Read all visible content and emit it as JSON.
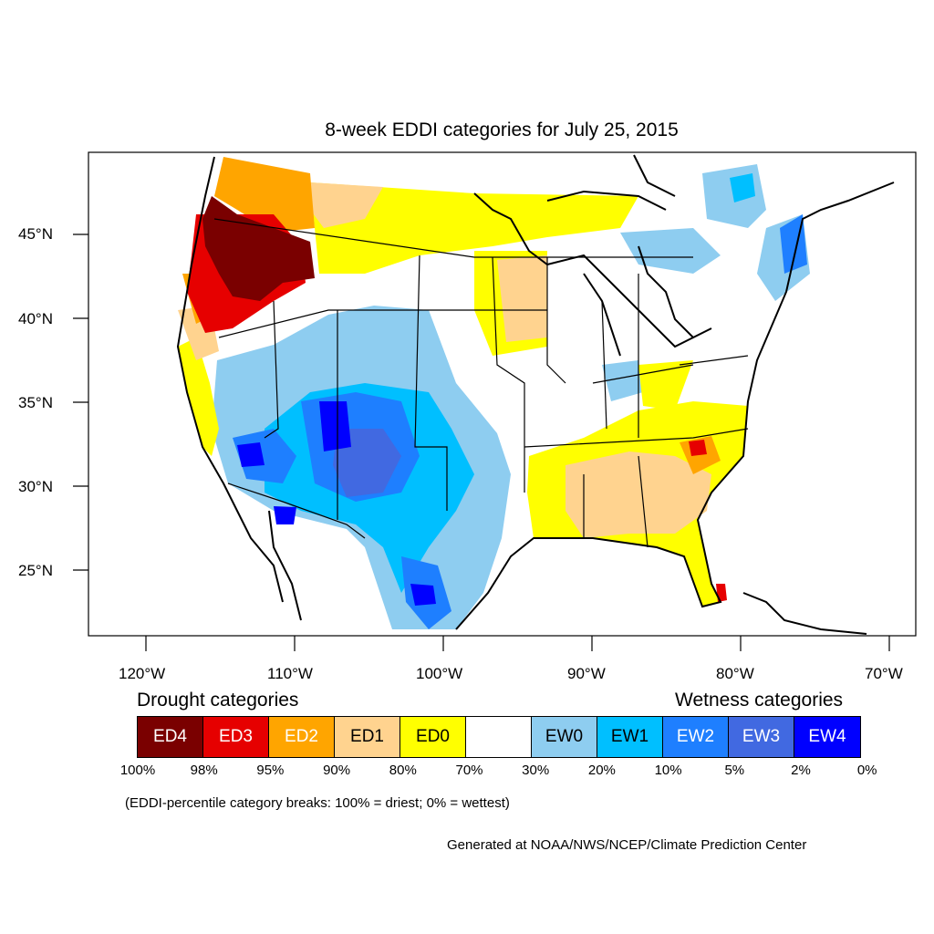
{
  "title": "8-week EDDI categories for July 25, 2015",
  "lat_labels": [
    "45°N",
    "40°N",
    "35°N",
    "30°N",
    "25°N"
  ],
  "lon_labels": [
    "120°W",
    "110°W",
    "100°W",
    "90°W",
    "80°W",
    "70°W"
  ],
  "legend": {
    "drought_heading": "Drought categories",
    "wetness_heading": "Wetness categories",
    "categories": [
      {
        "label": "ED4",
        "color": "#7a0000",
        "text_color": "#ffffff"
      },
      {
        "label": "ED3",
        "color": "#e60000",
        "text_color": "#ffffff"
      },
      {
        "label": "ED2",
        "color": "#ffa500",
        "text_color": "#ffffff"
      },
      {
        "label": "ED1",
        "color": "#ffd38f",
        "text_color": "#000000"
      },
      {
        "label": "ED0",
        "color": "#ffff00",
        "text_color": "#000000"
      },
      {
        "label": "",
        "color": "#ffffff",
        "text_color": "#000000"
      },
      {
        "label": "EW0",
        "color": "#8ecdf0",
        "text_color": "#000000"
      },
      {
        "label": "EW1",
        "color": "#00bfff",
        "text_color": "#000000"
      },
      {
        "label": "EW2",
        "color": "#1e7fff",
        "text_color": "#ffffff"
      },
      {
        "label": "EW3",
        "color": "#4169e1",
        "text_color": "#ffffff"
      },
      {
        "label": "EW4",
        "color": "#0000ff",
        "text_color": "#ffffff"
      }
    ],
    "percent_breaks": [
      "100%",
      "98%",
      "95%",
      "90%",
      "80%",
      "70%",
      "30%",
      "20%",
      "10%",
      "5%",
      "2%",
      "0%"
    ],
    "note": "(EDDI-percentile category breaks: 100% = driest; 0% = wettest)"
  },
  "credit": "Generated at NOAA/NWS/NCEP/Climate Prediction Center"
}
